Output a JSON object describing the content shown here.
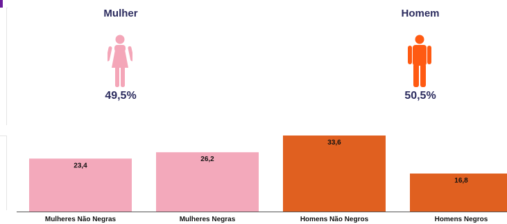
{
  "genders": [
    {
      "title": "Mulher",
      "percent": "49,5%",
      "color": "#f4a6b8"
    },
    {
      "title": "Homem",
      "percent": "50,5%",
      "color": "#ff5a12"
    }
  ],
  "chart_data": {
    "type": "bar",
    "categories": [
      "Mulheres Não Negras",
      "Mulheres Negras",
      "Homens Não Negros",
      "Homens Negros"
    ],
    "values": [
      23.4,
      26.2,
      33.6,
      16.8
    ],
    "value_labels": [
      "23,4",
      "26,2",
      "33,6",
      "16,8"
    ],
    "colors": [
      "#f3a9bb",
      "#f3a9bb",
      "#e06020",
      "#e06020"
    ],
    "ylim": [
      0,
      33.6
    ],
    "grid": false,
    "legend": "none"
  }
}
